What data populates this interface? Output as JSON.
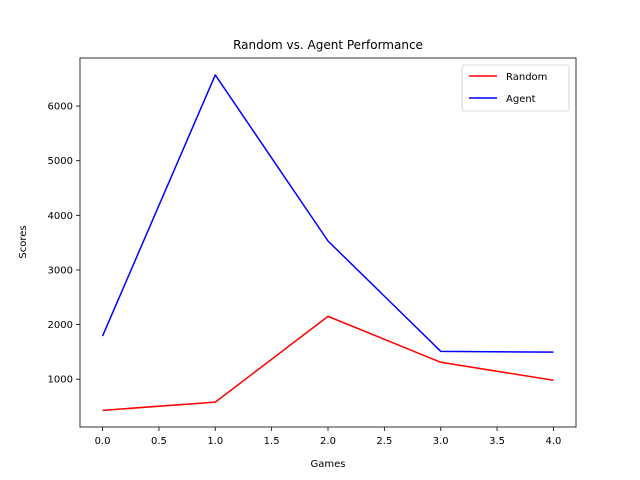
{
  "chart_data": {
    "type": "line",
    "title": "Random vs. Agent Performance",
    "xlabel": "Games",
    "ylabel": "Scores",
    "x": [
      0,
      1,
      2,
      3,
      4
    ],
    "series": [
      {
        "name": "Random",
        "color": "#ff0000",
        "values": [
          430,
          580,
          2150,
          1310,
          980
        ]
      },
      {
        "name": "Agent",
        "color": "#0000ff",
        "values": [
          1790,
          6570,
          3530,
          1510,
          1495
        ]
      }
    ],
    "xlim": [
      -0.2,
      4.2
    ],
    "ylim": [
      125,
      6880
    ],
    "xticks": [
      "0.0",
      "0.5",
      "1.0",
      "1.5",
      "2.0",
      "2.5",
      "3.0",
      "3.5",
      "4.0"
    ],
    "yticks": [
      "1000",
      "2000",
      "3000",
      "4000",
      "5000",
      "6000"
    ],
    "grid": false,
    "legend_position": "top-right"
  }
}
